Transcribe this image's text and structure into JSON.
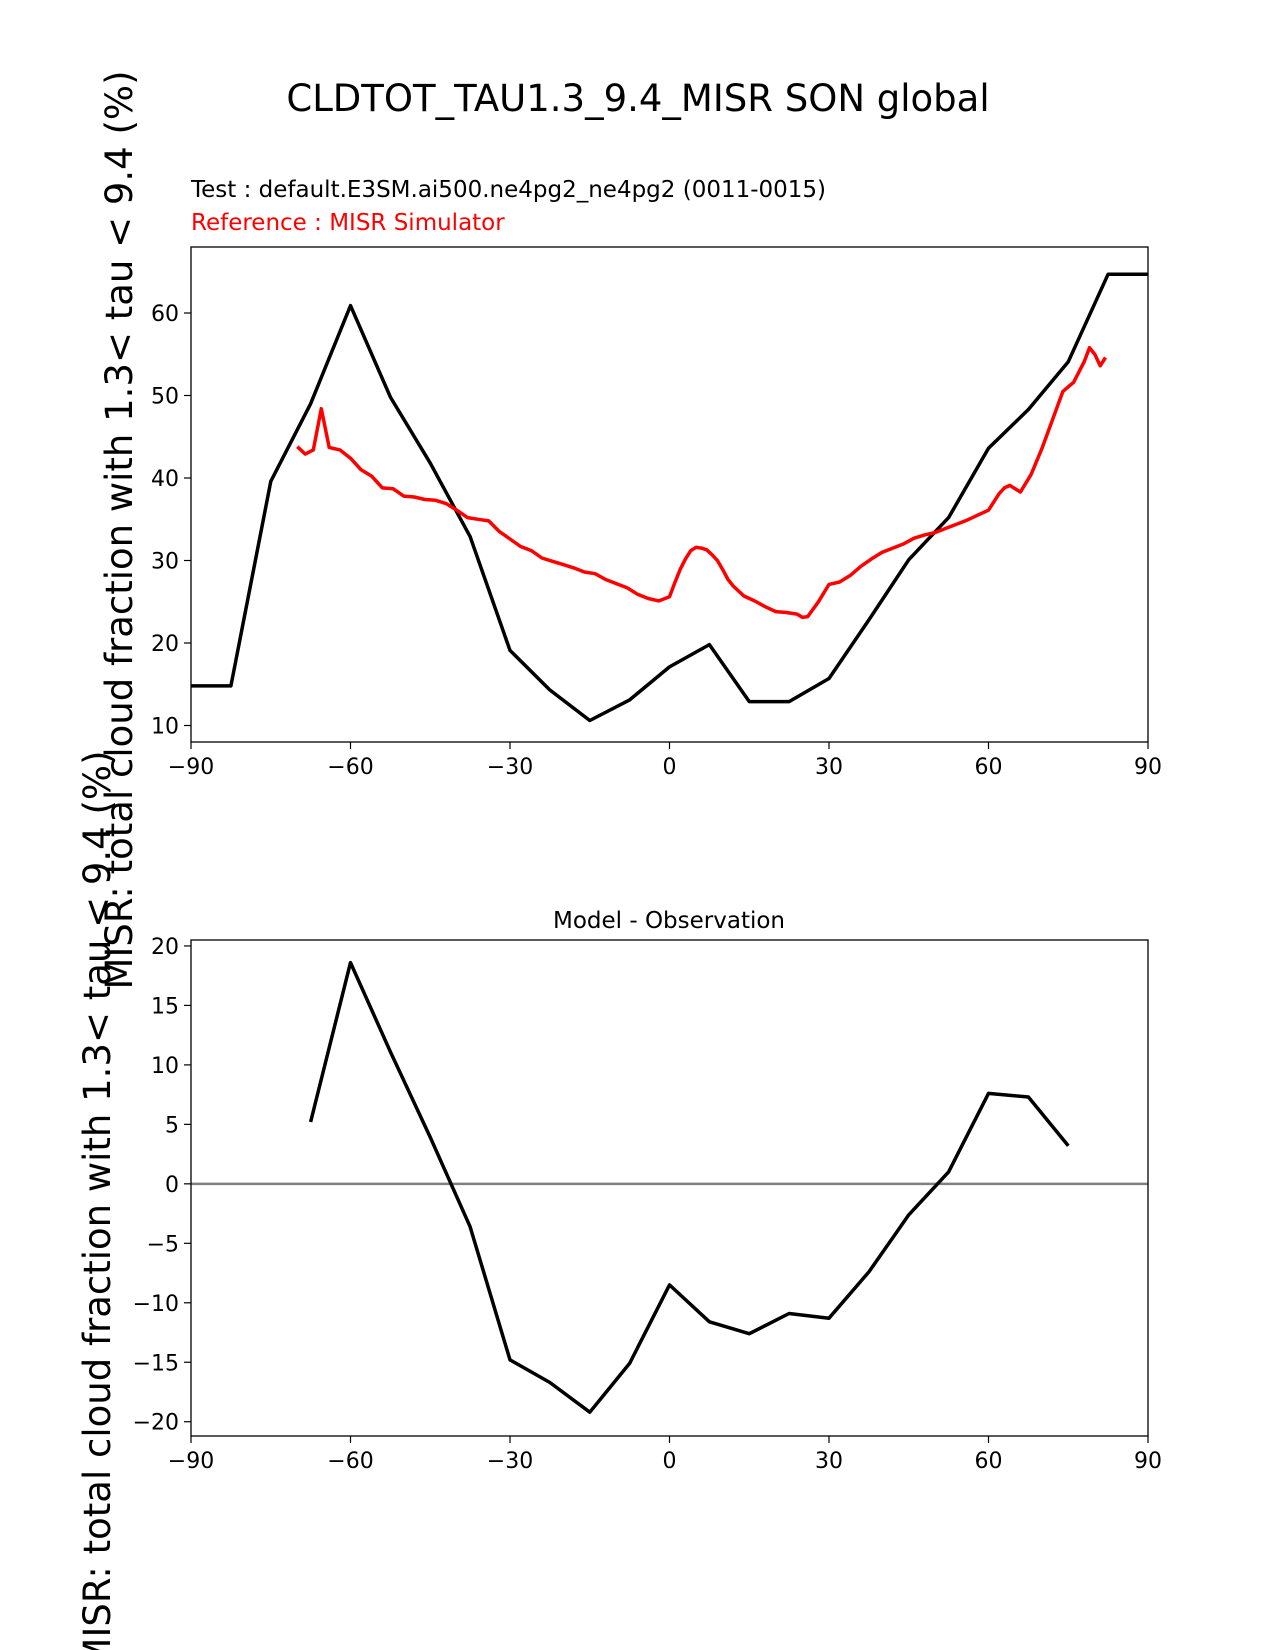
{
  "figure": {
    "title": "CLDTOT_TAU1.3_9.4_MISR SON global",
    "ylabel": "MISR: total cloud fraction with 1.3< tau < 9.4 (%)"
  },
  "chart_data": [
    {
      "type": "line",
      "test_label": "Test : default.E3SM.ai500.ne4pg2_ne4pg2 (0011-0015)",
      "reference_label": "Reference : MISR Simulator",
      "xlim": [
        -90,
        90
      ],
      "ylim": [
        8,
        68
      ],
      "xticks": [
        -90,
        -60,
        -30,
        0,
        30,
        60,
        90
      ],
      "yticks": [
        10,
        20,
        30,
        40,
        50,
        60
      ],
      "series": [
        {
          "color": "#000000",
          "x": [
            -90,
            -82.5,
            -75,
            -67.5,
            -60,
            -52.5,
            -45,
            -37.5,
            -30,
            -22.5,
            -15,
            -7.5,
            0,
            7.5,
            15,
            22.5,
            30,
            37.5,
            45,
            52.5,
            60,
            67.5,
            75,
            82.5,
            90
          ],
          "y": [
            14.8,
            14.8,
            39.6,
            49,
            60.9,
            49.8,
            41.8,
            32.9,
            19.1,
            14.3,
            10.6,
            13.1,
            17.1,
            19.8,
            12.9,
            12.9,
            15.7,
            22.8,
            30.1,
            35.2,
            43.6,
            48.3,
            54.1,
            64.7,
            64.7
          ]
        },
        {
          "color": "#ff0000",
          "x": [
            -70,
            -68.5,
            -67,
            -65.5,
            -64,
            -62,
            -60,
            -58,
            -56,
            -54,
            -52,
            -50,
            -48,
            -46,
            -44,
            -42,
            -40,
            -38,
            -36,
            -34,
            -32,
            -30,
            -28,
            -26,
            -24,
            -22,
            -20,
            -18,
            -16,
            -14,
            -12,
            -10,
            -8,
            -6,
            -4,
            -2,
            0,
            1,
            2,
            3,
            4,
            5,
            6,
            7,
            8,
            9,
            10,
            11,
            12,
            14,
            16,
            18,
            20,
            22,
            24,
            25,
            26,
            28,
            30,
            32,
            34,
            36,
            38,
            40,
            42,
            44,
            46,
            48,
            50,
            52,
            54,
            56,
            58,
            60,
            62,
            63,
            64,
            66,
            68,
            70,
            72,
            74,
            76,
            78,
            79,
            80,
            81,
            82
          ],
          "y": [
            43.8,
            42.9,
            43.4,
            48.4,
            43.7,
            43.4,
            42.4,
            41,
            40.2,
            38.8,
            38.7,
            37.8,
            37.7,
            37.4,
            37.3,
            36.9,
            36.1,
            35.2,
            35,
            34.8,
            33.5,
            32.6,
            31.7,
            31.2,
            30.3,
            29.9,
            29.5,
            29.1,
            28.6,
            28.4,
            27.7,
            27.2,
            26.7,
            25.9,
            25.4,
            25.1,
            25.6,
            27.3,
            28.9,
            30.2,
            31.2,
            31.6,
            31.5,
            31.3,
            30.7,
            30,
            28.9,
            27.7,
            26.9,
            25.7,
            25.1,
            24.4,
            23.8,
            23.7,
            23.5,
            23.1,
            23.2,
            25,
            27.1,
            27.4,
            28.2,
            29.3,
            30.2,
            31,
            31.5,
            32,
            32.7,
            33.1,
            33.4,
            33.9,
            34.4,
            34.9,
            35.5,
            36.1,
            38.1,
            38.8,
            39.1,
            38.3,
            40.4,
            43.5,
            47,
            50.5,
            51.6,
            54.1,
            55.8,
            55,
            53.6,
            54.6
          ]
        }
      ]
    },
    {
      "type": "line",
      "title": "Model - Observation",
      "xlim": [
        -90,
        90
      ],
      "ylim": [
        -21.2,
        20.5
      ],
      "xticks": [
        -90,
        -60,
        -30,
        0,
        30,
        60,
        90
      ],
      "yticks": [
        -20,
        -15,
        -10,
        -5,
        0,
        5,
        10,
        15,
        20
      ],
      "zero_line_color": "#808080",
      "series": [
        {
          "color": "#000000",
          "x": [
            -67.5,
            -60,
            -52.5,
            -45,
            -37.5,
            -30,
            -22.5,
            -15,
            -7.5,
            0,
            7.5,
            15,
            22.5,
            30,
            37.5,
            45,
            52.5,
            60,
            67.5,
            75
          ],
          "y": [
            5.2,
            18.6,
            11.1,
            3.9,
            -3.6,
            -14.8,
            -16.7,
            -19.2,
            -15.1,
            -8.5,
            -11.6,
            -12.6,
            -10.9,
            -11.3,
            -7.4,
            -2.6,
            1.0,
            7.6,
            7.3,
            3.2
          ]
        }
      ]
    }
  ]
}
